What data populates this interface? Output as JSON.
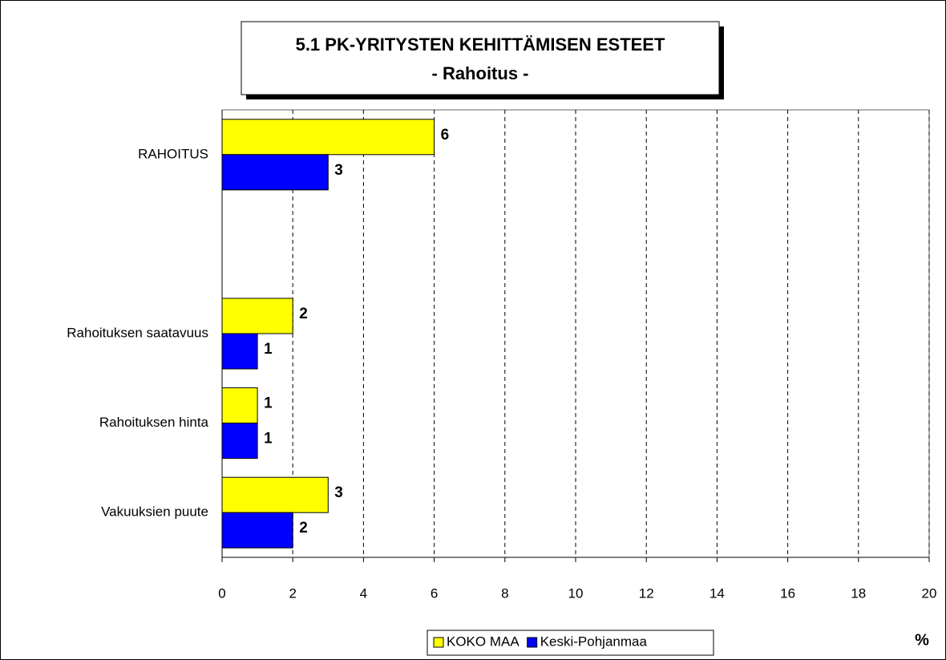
{
  "chart_data": {
    "type": "barh",
    "title": "5.1 PK-YRITYSTEN KEHITTÄMISEN ESTEET",
    "subtitle": "- Rahoitus -",
    "categories": [
      "RAHOITUS",
      null,
      "Rahoituksen saatavuus",
      "Rahoituksen hinta",
      "Vakuuksien puute"
    ],
    "series": [
      {
        "name": "KOKO MAA",
        "color": "#ffff00",
        "values": [
          6,
          null,
          2,
          1,
          3
        ]
      },
      {
        "name": "Keski-Pohjanmaa",
        "color": "#0000ff",
        "values": [
          3,
          null,
          1,
          1,
          2
        ]
      }
    ],
    "xlim": [
      0,
      20
    ],
    "xticks": [
      0,
      2,
      4,
      6,
      8,
      10,
      12,
      14,
      16,
      18,
      20
    ],
    "x_label": "%",
    "grid": true,
    "legend": "bottom"
  }
}
